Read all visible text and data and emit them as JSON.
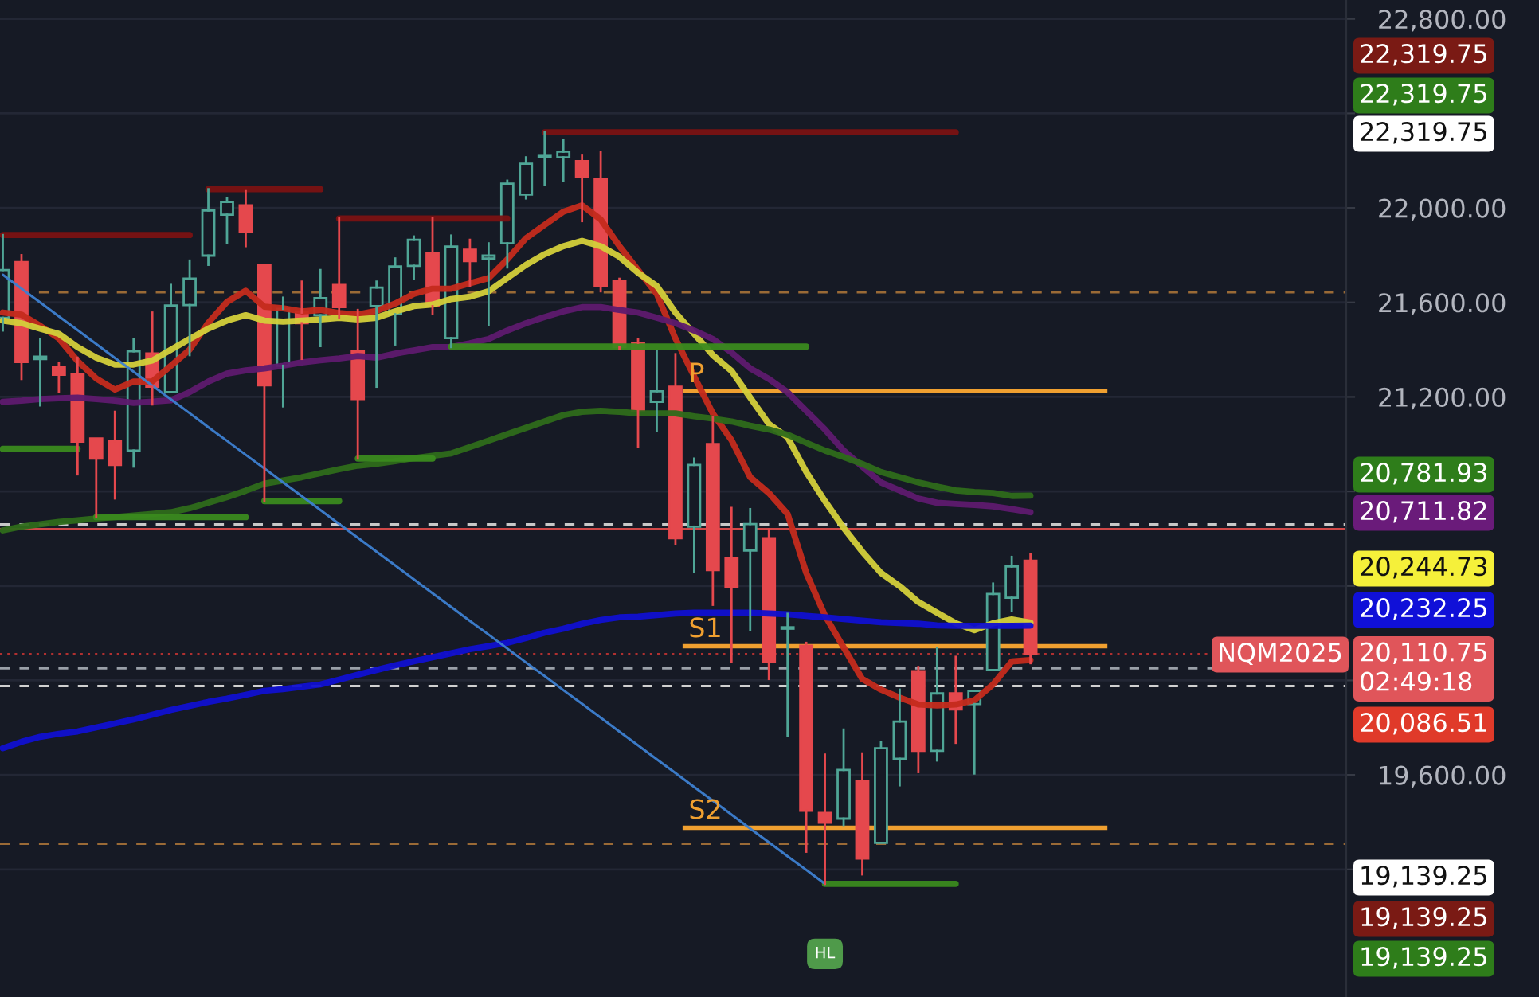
{
  "chart_data": {
    "type": "candlestick",
    "categories": [
      null,
      null,
      null,
      null,
      null,
      null,
      null,
      null,
      null,
      null,
      null,
      null,
      null,
      null,
      null,
      null,
      null,
      null,
      null,
      null,
      null,
      null,
      null,
      null,
      null,
      null,
      null,
      null,
      null,
      null,
      null,
      null,
      null,
      null,
      null,
      null,
      null,
      null,
      null,
      null,
      null,
      null,
      null,
      null,
      null,
      null,
      null,
      null,
      null,
      null,
      null,
      null,
      null,
      null,
      null,
      null
    ],
    "ohlc": [
      [
        21535,
        21885,
        21481,
        21737
      ],
      [
        21771,
        21800,
        21276,
        21348
      ],
      [
        21360,
        21445,
        21164,
        21370
      ],
      [
        21328,
        21344,
        21220,
        21294
      ],
      [
        21297,
        21366,
        20872,
        21011
      ],
      [
        21024,
        21024,
        20691,
        20939
      ],
      [
        21013,
        21137,
        20770,
        20912
      ],
      [
        20973,
        21445,
        20905,
        21393
      ],
      [
        21384,
        21557,
        21168,
        21243
      ],
      [
        21220,
        21674,
        21220,
        21587
      ],
      [
        21589,
        21777,
        21377,
        21701
      ],
      [
        21798,
        22079,
        21759,
        21989
      ],
      [
        21971,
        22040,
        21850,
        22025
      ],
      [
        22011,
        22074,
        21838,
        21899
      ],
      [
        21759,
        21759,
        20759,
        21249
      ],
      [
        21332,
        21620,
        21160,
        21573
      ],
      [
        21557,
        21688,
        21361,
        21512
      ],
      [
        21546,
        21737,
        21415,
        21618
      ],
      [
        21674,
        21955,
        21535,
        21580
      ],
      [
        21395,
        21568,
        20939,
        21191
      ],
      [
        21584,
        21688,
        21243,
        21663
      ],
      [
        21550,
        21786,
        21422,
        21752
      ],
      [
        21755,
        21879,
        21699,
        21865
      ],
      [
        21809,
        21957,
        21550,
        21584
      ],
      [
        21449,
        21883,
        21411,
        21836
      ],
      [
        21823,
        21865,
        21670,
        21775
      ],
      [
        21786,
        21850,
        21506,
        21798
      ],
      [
        21850,
        22115,
        21748,
        22103
      ],
      [
        22056,
        22214,
        22040,
        22187
      ],
      [
        22215,
        22319.75,
        22096,
        22220
      ],
      [
        22214,
        22288,
        22113,
        22238
      ],
      [
        22198,
        22221,
        21944,
        22130
      ],
      [
        22123,
        22236,
        21647,
        21670
      ],
      [
        21692,
        21700,
        21405,
        21411
      ],
      [
        21429,
        21445,
        20990,
        21141
      ],
      [
        21179,
        21395,
        21056,
        21224
      ],
      [
        21243,
        21381,
        20579,
        20602
      ],
      [
        20651,
        20939,
        20460,
        20912
      ],
      [
        21000,
        21114,
        20320,
        20467
      ],
      [
        20518,
        20730,
        20078,
        20395
      ],
      [
        20550,
        20725,
        20213,
        20662
      ],
      [
        20602,
        20640,
        20006,
        20080
      ],
      [
        20219,
        20282,
        19765,
        20225
      ],
      [
        20147,
        20159,
        19275,
        19448
      ],
      [
        19439,
        19686,
        19139.25,
        19398
      ],
      [
        19415,
        19792,
        19388,
        19621
      ],
      [
        19572,
        19691,
        19179,
        19246
      ],
      [
        19313,
        19740,
        19313,
        19713
      ],
      [
        19668,
        19961,
        19556,
        19826
      ],
      [
        20039,
        20057,
        19612,
        19702
      ],
      [
        19702,
        20136,
        19661,
        19945
      ],
      [
        19945,
        20100,
        19736,
        19877
      ],
      [
        19900,
        19956,
        19606,
        19956
      ],
      [
        20044,
        20410,
        20044,
        20366
      ],
      [
        20350,
        20523,
        20294,
        20482
      ],
      [
        20507,
        20534,
        20073,
        20110.75
      ]
    ],
    "series": [
      {
        "type": "line",
        "color": "#c42b1c",
        "values": [
          21557,
          21548,
          21501,
          21447,
          21352,
          21278,
          21231,
          21265,
          21265,
          21332,
          21400,
          21514,
          21602,
          21649,
          21582,
          21575,
          21562,
          21568,
          21555,
          21548,
          21564,
          21595,
          21636,
          21658,
          21658,
          21681,
          21703,
          21782,
          21872,
          21928,
          21984,
          22011,
          21951,
          21838,
          21737,
          21636,
          21447,
          21287,
          21130,
          21017,
          20860,
          20793,
          20705,
          20455,
          20275,
          20140,
          20006,
          19961,
          19927,
          19898,
          19894,
          19898,
          19916,
          19983,
          20080,
          20086.51
        ]
      },
      {
        "type": "line",
        "color": "#d4d03a",
        "values": [
          21523,
          21512,
          21489,
          21467,
          21411,
          21366,
          21337,
          21337,
          21354,
          21400,
          21445,
          21489,
          21523,
          21546,
          21523,
          21519,
          21523,
          21528,
          21535,
          21528,
          21535,
          21562,
          21584,
          21591,
          21614,
          21624,
          21647,
          21703,
          21759,
          21804,
          21838,
          21860,
          21838,
          21793,
          21725,
          21669,
          21557,
          21467,
          21377,
          21310,
          21197,
          21085,
          21029,
          20882,
          20759,
          20646,
          20545,
          20455,
          20399,
          20332,
          20287,
          20242,
          20213,
          20242,
          20258,
          20244.73
        ]
      },
      {
        "type": "line",
        "color": "#5e1a6e",
        "values": [
          21179,
          21184,
          21191,
          21194,
          21197,
          21191,
          21184,
          21175,
          21180,
          21186,
          21220,
          21265,
          21299,
          21312,
          21321,
          21332,
          21346,
          21355,
          21363,
          21373,
          21366,
          21383,
          21397,
          21411,
          21411,
          21427,
          21445,
          21481,
          21512,
          21538,
          21562,
          21580,
          21580,
          21568,
          21557,
          21535,
          21512,
          21481,
          21445,
          21388,
          21321,
          21276,
          21220,
          21141,
          21062,
          20973,
          20905,
          20838,
          20804,
          20770,
          20752,
          20747,
          20743,
          20737,
          20725,
          20711.82
        ]
      },
      {
        "type": "line",
        "color": "#2e6b1a",
        "values": [
          20635,
          20651,
          20661,
          20671,
          20678,
          20685,
          20691,
          20698,
          20705,
          20712,
          20729,
          20752,
          20776,
          20803,
          20833,
          20846,
          20860,
          20877,
          20894,
          20909,
          20917,
          20928,
          20941,
          20951,
          20961,
          20988,
          21015,
          21042,
          21069,
          21096,
          21123,
          21137,
          21141,
          21137,
          21130,
          21130,
          21130,
          21118,
          21108,
          21096,
          21078,
          21062,
          21040,
          21006,
          20973,
          20946,
          20916,
          20882,
          20860,
          20838,
          20820,
          20804,
          20797,
          20793,
          20781,
          20781.93
        ]
      },
      {
        "type": "line",
        "color": "#1010d0",
        "values": [
          19713,
          19740,
          19761,
          19774,
          19784,
          19801,
          19818,
          19835,
          19855,
          19875,
          19892,
          19909,
          19923,
          19939,
          19956,
          19963,
          19973,
          19983,
          20003,
          20024,
          20044,
          20064,
          20081,
          20098,
          20115,
          20132,
          20145,
          20159,
          20179,
          20202,
          20219,
          20240,
          20256,
          20267,
          20270,
          20277,
          20283,
          20287,
          20287,
          20287,
          20287,
          20283,
          20280,
          20273,
          20267,
          20260,
          20253,
          20246,
          20243,
          20240,
          20233,
          20231,
          20231,
          20231,
          20231,
          20232.25
        ]
      },
      {
        "type": "line",
        "color": "#7a1212",
        "values": [
          21885,
          21885,
          21885,
          21885,
          21885,
          21885,
          21885,
          21885,
          21885,
          21885,
          21885,
          null,
          null,
          null,
          null,
          null,
          null,
          null,
          null,
          null,
          null,
          null,
          null,
          null,
          null,
          null,
          null,
          null,
          null,
          null,
          null,
          null,
          null,
          null,
          null,
          null,
          null,
          null,
          null,
          null,
          null,
          null,
          null,
          null,
          null,
          null,
          null,
          null,
          null,
          null,
          null,
          null,
          null,
          null,
          null,
          null
        ]
      },
      {
        "type": "line",
        "color": "#7a1212",
        "values": [
          null,
          null,
          null,
          null,
          null,
          null,
          null,
          null,
          null,
          null,
          null,
          22079,
          22079,
          22079,
          22079,
          22079,
          22079,
          22079,
          null,
          null,
          null,
          null,
          null,
          null,
          null,
          null,
          null,
          null,
          null,
          null,
          null,
          null,
          null,
          null,
          null,
          null,
          null,
          null,
          null,
          null,
          null,
          null,
          null,
          null,
          null,
          null,
          null,
          null,
          null,
          null,
          null,
          null,
          null,
          null,
          null,
          null
        ]
      },
      {
        "type": "line",
        "color": "#7a1212",
        "values": [
          null,
          null,
          null,
          null,
          null,
          null,
          null,
          null,
          null,
          null,
          null,
          null,
          null,
          null,
          null,
          null,
          null,
          null,
          21955,
          21955,
          21955,
          21955,
          21955,
          21955,
          21955,
          21955,
          21955,
          21955,
          null,
          null,
          null,
          null,
          null,
          null,
          null,
          null,
          null,
          null,
          null,
          null,
          null,
          null,
          null,
          null,
          null,
          null,
          null,
          null,
          null,
          null,
          null,
          null,
          null,
          null,
          null,
          null
        ]
      },
      {
        "type": "line",
        "color": "#7a1212",
        "values": [
          null,
          null,
          null,
          null,
          null,
          null,
          null,
          null,
          null,
          null,
          null,
          null,
          null,
          null,
          null,
          null,
          null,
          null,
          null,
          null,
          null,
          null,
          null,
          null,
          null,
          null,
          null,
          null,
          null,
          22319.75,
          22319.75,
          22319.75,
          22319.75,
          22319.75,
          22319.75,
          22319.75,
          22319.75,
          22319.75,
          22319.75,
          22319.75,
          22319.75,
          22319.75,
          22319.75,
          22319.75,
          22319.75,
          22319.75,
          22319.75,
          22319.75,
          22319.75,
          22319.75,
          22319.75,
          22319.75,
          null,
          null,
          null,
          null
        ]
      },
      {
        "type": "line",
        "color": "#3a8a1e",
        "values": [
          20980,
          20980,
          20980,
          20980,
          20980,
          null,
          null,
          null,
          null,
          null,
          null,
          null,
          null,
          null,
          null,
          null,
          null,
          null,
          null,
          null,
          null,
          null,
          null,
          null,
          null,
          null,
          null,
          null,
          null,
          null,
          null,
          null,
          null,
          null,
          null,
          null,
          null,
          null,
          null,
          null,
          null,
          null,
          null,
          null,
          null,
          null,
          null,
          null,
          null,
          null,
          null,
          null,
          null,
          null,
          null,
          null
        ]
      },
      {
        "type": "line",
        "color": "#3a8a1e",
        "values": [
          null,
          null,
          null,
          null,
          null,
          20691,
          20691,
          20691,
          20691,
          20691,
          20691,
          20691,
          20691,
          20691,
          null,
          null,
          null,
          null,
          null,
          null,
          null,
          null,
          null,
          null,
          null,
          null,
          null,
          null,
          null,
          null,
          null,
          null,
          null,
          null,
          null,
          null,
          null,
          null,
          null,
          null,
          null,
          null,
          null,
          null,
          null,
          null,
          null,
          null,
          null,
          null,
          null,
          null,
          null,
          null,
          null,
          null
        ]
      },
      {
        "type": "line",
        "color": "#3a8a1e",
        "values": [
          null,
          null,
          null,
          null,
          null,
          null,
          null,
          null,
          null,
          null,
          null,
          null,
          null,
          null,
          20759,
          20759,
          20759,
          20759,
          20759,
          null,
          null,
          null,
          null,
          null,
          null,
          null,
          null,
          null,
          null,
          null,
          null,
          null,
          null,
          null,
          null,
          null,
          null,
          null,
          null,
          null,
          null,
          null,
          null,
          null,
          null,
          null,
          null,
          null,
          null,
          null,
          null,
          null,
          null,
          null,
          null,
          null
        ]
      },
      {
        "type": "line",
        "color": "#3a8a1e",
        "values": [
          null,
          null,
          null,
          null,
          null,
          null,
          null,
          null,
          null,
          null,
          null,
          null,
          null,
          null,
          null,
          null,
          null,
          null,
          null,
          20939,
          20939,
          20939,
          20939,
          20939,
          null,
          null,
          null,
          null,
          null,
          null,
          null,
          null,
          null,
          null,
          null,
          null,
          null,
          null,
          null,
          null,
          null,
          null,
          null,
          null,
          null,
          null,
          null,
          null,
          null,
          null,
          null,
          null,
          null,
          null,
          null,
          null
        ]
      },
      {
        "type": "line",
        "color": "#3a8a1e",
        "values": [
          null,
          null,
          null,
          null,
          null,
          null,
          null,
          null,
          null,
          null,
          null,
          null,
          null,
          null,
          null,
          null,
          null,
          null,
          null,
          null,
          null,
          null,
          null,
          null,
          21413,
          21413,
          21413,
          21413,
          21413,
          21413,
          21413,
          21413,
          21413,
          21413,
          21413,
          21413,
          21413,
          21413,
          21413,
          21413,
          21413,
          21413,
          21413,
          21413,
          null,
          null,
          null,
          null,
          null,
          null,
          null,
          null,
          null,
          null,
          null,
          null
        ]
      },
      {
        "type": "line",
        "color": "#3a8a1e",
        "values": [
          null,
          null,
          null,
          null,
          null,
          null,
          null,
          null,
          null,
          null,
          null,
          null,
          null,
          null,
          null,
          null,
          null,
          null,
          null,
          null,
          null,
          null,
          null,
          null,
          null,
          null,
          null,
          null,
          null,
          null,
          null,
          null,
          null,
          null,
          null,
          null,
          null,
          null,
          null,
          null,
          null,
          null,
          null,
          null,
          19139.25,
          19139.25,
          19139.25,
          19139.25,
          19139.25,
          19139.25,
          19139.25,
          19139.25,
          null,
          null,
          null,
          null
        ]
      },
      {
        "type": "line",
        "color": "#3d7fd0",
        "values": [
          21717,
          21658,
          21600,
          21541,
          21483,
          21424,
          21365,
          21307,
          21248,
          21190,
          21131,
          21072,
          21014,
          20955,
          20897,
          20838,
          20780,
          20721,
          20662,
          20604,
          20545,
          20487,
          20428,
          20369,
          20311,
          20252,
          20194,
          20135,
          20076,
          20018,
          19959,
          19901,
          19842,
          19783,
          19725,
          19666,
          19608,
          19549,
          19491,
          19432,
          19373,
          19315,
          19256,
          19198,
          19139.25,
          null,
          null,
          null,
          null,
          null,
          null,
          null,
          null,
          null,
          null,
          null
        ]
      }
    ],
    "ylim": [
      18660,
      22880
    ],
    "yticks": [
      {
        "value": 19200,
        "label": null
      },
      {
        "value": 19600,
        "label": "19,600.00"
      },
      {
        "value": 20000,
        "label": null
      },
      {
        "value": 20400,
        "label": null
      },
      {
        "value": 20800,
        "label": null
      },
      {
        "value": 21200,
        "label": "21,200.00"
      },
      {
        "value": 21600,
        "label": "21,600.00"
      },
      {
        "value": 22000,
        "label": "22,000.00"
      },
      {
        "value": 22400,
        "label": null
      },
      {
        "value": 22800,
        "label": "22,800.00"
      }
    ],
    "tick_labels": "y",
    "grid": "y",
    "ref_lines": [
      {
        "axis": "y",
        "value": 21643,
        "color": "#9a6a36",
        "line_style": "dashed"
      },
      {
        "axis": "y",
        "value": 20660,
        "color": "#c8c8c8",
        "line_style": "dashed"
      },
      {
        "axis": "y",
        "value": 20640,
        "color": "#d04848",
        "line_style": "solid"
      },
      {
        "axis": "y",
        "value": 20110.75,
        "color": "#b03030",
        "line_style": "dotted"
      },
      {
        "axis": "y",
        "value": 20051,
        "color": "#9aa0a8",
        "line_style": "dashed"
      },
      {
        "axis": "y",
        "value": 19976,
        "color": "#d0d0d0",
        "line_style": "dashed"
      },
      {
        "axis": "y",
        "value": 19309,
        "color": "#9a6a36",
        "line_style": "dashed"
      },
      {
        "axis": "y",
        "value": 21224,
        "label": "P",
        "color": "#f0a030",
        "line_style": "solid"
      },
      {
        "axis": "y",
        "value": 20145,
        "label": "S1",
        "color": "#f0a030",
        "line_style": "solid"
      },
      {
        "axis": "y",
        "value": 19376,
        "label": "S2",
        "color": "#f0a030",
        "line_style": "solid"
      }
    ],
    "annotations": [
      "22,319.75",
      "22,319.75",
      "22,319.75",
      "20,781.93",
      "20,711.82",
      "20,244.73",
      "20,232.25",
      "20,110.75\n02:49:18",
      "20,086.51",
      "19,139.25",
      "19,139.25",
      "19,139.25",
      "NQM2025",
      "HL"
    ]
  }
}
